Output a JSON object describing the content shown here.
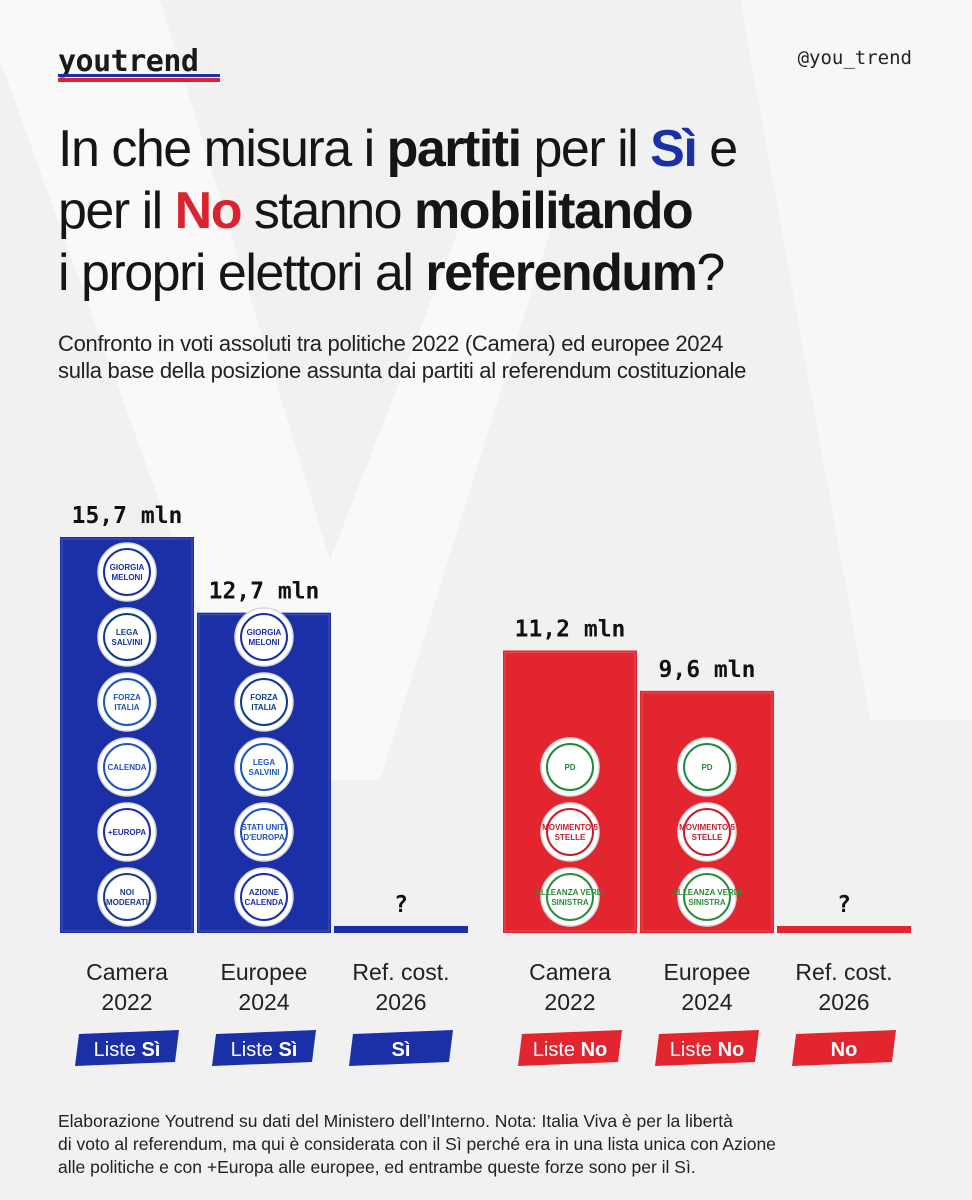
{
  "header": {
    "brand": "youtrend",
    "handle": "@you_trend"
  },
  "title": {
    "line1_a": "In che misura i ",
    "line1_b": "partiti",
    "line1_c": " per il ",
    "line1_d": "Sì",
    "line1_e": " e",
    "line2_a": "per il ",
    "line2_b": "No",
    "line2_c": " stanno ",
    "line2_d": "mobilitando",
    "line3_a": "i propri elettori al ",
    "line3_b": "referendum",
    "line3_c": "?"
  },
  "subtitle": {
    "line1": "Confronto in voti assoluti tra politiche 2022 (Camera) ed europee 2024",
    "line2": "sulla base della posizione assunta dai partiti al referendum costituzionale"
  },
  "colors": {
    "si": "#1b2fa6",
    "no": "#e2252f",
    "background": "#f1f1f2"
  },
  "chart_data": {
    "type": "bar",
    "unit": "mln",
    "groups": [
      {
        "side": "Sì",
        "color": "#1b2fa6",
        "bars": [
          {
            "category": [
              "Camera",
              "2022"
            ],
            "value": 15.7,
            "label": "15,7 mln",
            "tag_pre": "Liste ",
            "tag_bold": "Sì",
            "logos": [
              "GIORGIA MELONI",
              "LEGA SALVINI",
              "FORZA ITALIA",
              "CALENDA",
              "+EUROPA",
              "NOI MODERATI"
            ]
          },
          {
            "category": [
              "Europee",
              "2024"
            ],
            "value": 12.7,
            "label": "12,7 mln",
            "tag_pre": "Liste ",
            "tag_bold": "Sì",
            "logos": [
              "GIORGIA MELONI",
              "FORZA ITALIA",
              "LEGA SALVINI",
              "STATI UNITI D'EUROPA",
              "AZIONE CALENDA"
            ]
          },
          {
            "category": [
              "Ref. cost.",
              "2026"
            ],
            "value": null,
            "label": "?",
            "tag_pre": "",
            "tag_bold": "Sì",
            "logos": []
          }
        ]
      },
      {
        "side": "No",
        "color": "#e2252f",
        "bars": [
          {
            "category": [
              "Camera",
              "2022"
            ],
            "value": 11.2,
            "label": "11,2 mln",
            "tag_pre": "Liste ",
            "tag_bold": "No",
            "logos": [
              "PD",
              "MOVIMENTO 5 STELLE",
              "ALLEANZA VERDI SINISTRA"
            ]
          },
          {
            "category": [
              "Europee",
              "2024"
            ],
            "value": 9.6,
            "label": "9,6 mln",
            "tag_pre": "Liste ",
            "tag_bold": "No",
            "logos": [
              "PD",
              "MOVIMENTO 5 STELLE",
              "ALLEANZA VERDI SINISTRA"
            ]
          },
          {
            "category": [
              "Ref. cost.",
              "2026"
            ],
            "value": null,
            "label": "?",
            "tag_pre": "",
            "tag_bold": "No",
            "logos": []
          }
        ]
      }
    ]
  },
  "footnote": {
    "line1": "Elaborazione Youtrend su dati del Ministero dell’Interno. Nota: Italia Viva è per la libertà",
    "line2": "di voto al referendum, ma qui è considerata con il Sì perché era in una lista unica con Azione",
    "line3": "alle politiche e con +Europa alle europee, ed entrambe queste forze sono per il Sì."
  }
}
